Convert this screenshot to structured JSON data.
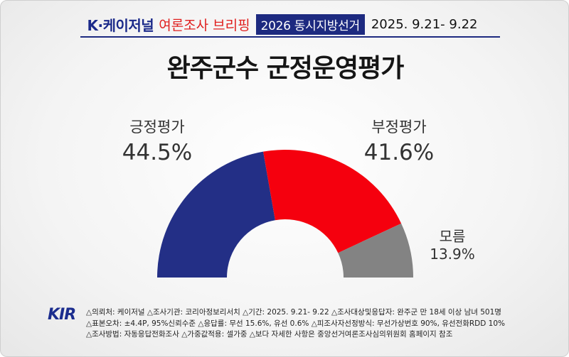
{
  "header": {
    "brand": "K·케이저널",
    "briefing": "여론조사 브리핑",
    "tag": "2026 동시지방선거",
    "period": "2025. 9.21- 9.22"
  },
  "chart_data": {
    "type": "pie",
    "title": "완주군수 군정운영평가",
    "slices": [
      {
        "label": "긍정평가",
        "value": 44.5,
        "display": "44.5%",
        "color": "#232f86"
      },
      {
        "label": "부정평가",
        "value": 41.6,
        "display": "41.6%",
        "color": "#f5000e"
      },
      {
        "label": "모름",
        "value": 13.9,
        "display": "13.9%",
        "color": "#838383"
      }
    ]
  },
  "logo": {
    "text": "KIR"
  },
  "notes": [
    "△의뢰처: 케이저널 △조사기관: 코리아정보리서치 △기간: 2025. 9.21- 9.22 △조사대상및응답자: 완주군 만 18세 이상 남녀 501명",
    "△표본오차: ±4.4P, 95%신뢰수준 △응답률: 무선 15.6%, 유선 0.6% △피조사자선정방식: 무선가상번호 90%, 유선전화RDD 10%",
    "△조사방법: 자동응답전화조사 △가중값적용: 셀가중 △보다 자세한 사항은 중앙선거여론조사심의위원회 홈페이지 참조"
  ]
}
